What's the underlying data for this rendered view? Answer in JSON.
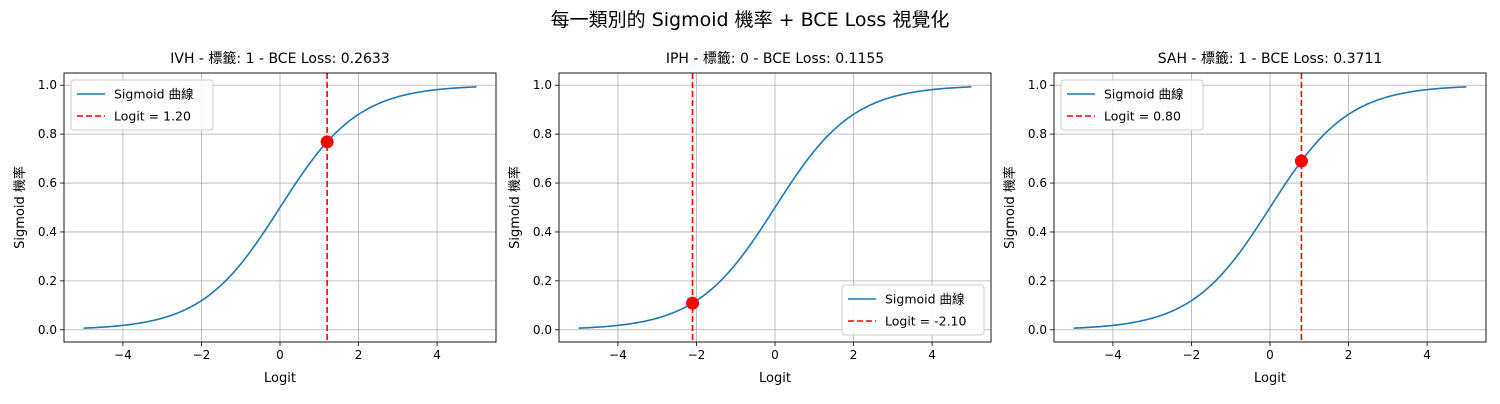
{
  "suptitle": "每一類別的 Sigmoid 機率 + BCE Loss 視覺化",
  "chart_data": [
    {
      "type": "line",
      "title": "IVH - 標籤: 1 - BCE Loss: 0.2633",
      "xlabel": "Logit",
      "ylabel": "Sigmoid 機率",
      "xlim": [
        -5.5,
        5.5
      ],
      "ylim": [
        -0.05,
        1.05
      ],
      "xticks": [
        -4,
        -2,
        0,
        2,
        4
      ],
      "xtick_labels": [
        "−4",
        "−2",
        "0",
        "2",
        "4"
      ],
      "yticks": [
        0.0,
        0.2,
        0.4,
        0.6,
        0.8,
        1.0
      ],
      "ytick_labels": [
        "0.0",
        "0.2",
        "0.4",
        "0.6",
        "0.8",
        "1.0"
      ],
      "grid": true,
      "legend_position": "upper left",
      "series": [
        {
          "name": "Sigmoid 曲線",
          "kind": "sigmoid-curve",
          "x_range": [
            -5,
            5
          ],
          "color": "#1f77b4"
        },
        {
          "name": "Logit = 1.20",
          "kind": "vline",
          "x": 1.2,
          "color": "#ff0000"
        }
      ],
      "point": {
        "x": 1.2,
        "y": 0.7685,
        "color": "#ff0000"
      }
    },
    {
      "type": "line",
      "title": "IPH - 標籤: 0 - BCE Loss: 0.1155",
      "xlabel": "Logit",
      "ylabel": "Sigmoid 機率",
      "xlim": [
        -5.5,
        5.5
      ],
      "ylim": [
        -0.05,
        1.05
      ],
      "xticks": [
        -4,
        -2,
        0,
        2,
        4
      ],
      "xtick_labels": [
        "−4",
        "−2",
        "0",
        "2",
        "4"
      ],
      "yticks": [
        0.0,
        0.2,
        0.4,
        0.6,
        0.8,
        1.0
      ],
      "ytick_labels": [
        "0.0",
        "0.2",
        "0.4",
        "0.6",
        "0.8",
        "1.0"
      ],
      "grid": true,
      "legend_position": "lower right",
      "series": [
        {
          "name": "Sigmoid 曲線",
          "kind": "sigmoid-curve",
          "x_range": [
            -5,
            5
          ],
          "color": "#1f77b4"
        },
        {
          "name": "Logit = -2.10",
          "kind": "vline",
          "x": -2.1,
          "color": "#ff0000"
        }
      ],
      "point": {
        "x": -2.1,
        "y": 0.1091,
        "color": "#ff0000"
      }
    },
    {
      "type": "line",
      "title": "SAH - 標籤: 1 - BCE Loss: 0.3711",
      "xlabel": "Logit",
      "ylabel": "Sigmoid 機率",
      "xlim": [
        -5.5,
        5.5
      ],
      "ylim": [
        -0.05,
        1.05
      ],
      "xticks": [
        -4,
        -2,
        0,
        2,
        4
      ],
      "xtick_labels": [
        "−4",
        "−2",
        "0",
        "2",
        "4"
      ],
      "yticks": [
        0.0,
        0.2,
        0.4,
        0.6,
        0.8,
        1.0
      ],
      "ytick_labels": [
        "0.0",
        "0.2",
        "0.4",
        "0.6",
        "0.8",
        "1.0"
      ],
      "grid": true,
      "legend_position": "upper left",
      "series": [
        {
          "name": "Sigmoid 曲線",
          "kind": "sigmoid-curve",
          "x_range": [
            -5,
            5
          ],
          "color": "#1f77b4"
        },
        {
          "name": "Logit = 0.80",
          "kind": "vline",
          "x": 0.8,
          "color": "#ff0000"
        }
      ],
      "point": {
        "x": 0.8,
        "y": 0.69,
        "color": "#ff0000"
      }
    }
  ]
}
